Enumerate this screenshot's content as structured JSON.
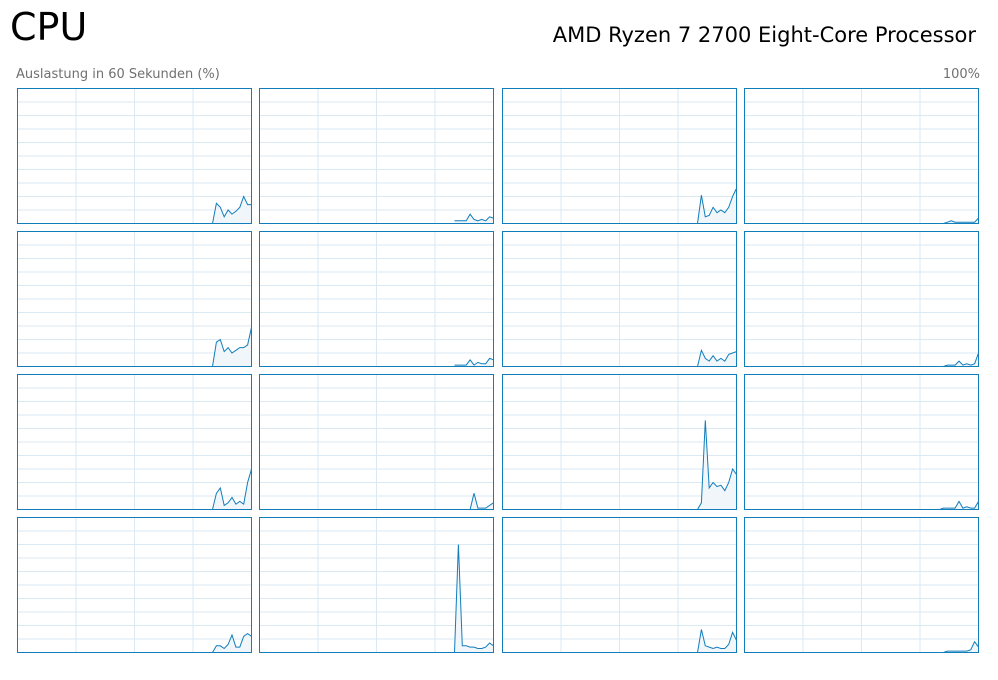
{
  "header": {
    "title": "CPU",
    "processor": "AMD Ryzen 7 2700 Eight-Core Processor"
  },
  "graph_label": "Auslastung in 60 Sekunden (%)",
  "graph_max_label": "100%",
  "chart_data": [
    {
      "type": "area",
      "color": "#117dbb",
      "grid": true,
      "xlim": [
        0,
        60
      ],
      "ylim": [
        0,
        100
      ],
      "xticks": [
        0,
        15,
        30,
        45,
        60
      ],
      "yticks": [
        0,
        10,
        20,
        30,
        40,
        50,
        60,
        70,
        80,
        90,
        100
      ],
      "x": [
        50,
        51,
        52,
        53,
        54,
        55,
        56,
        57,
        58,
        59,
        60
      ],
      "values": [
        0,
        15,
        12,
        5,
        10,
        7,
        9,
        12,
        20,
        14,
        14
      ]
    },
    {
      "type": "area",
      "color": "#117dbb",
      "grid": true,
      "xlim": [
        0,
        60
      ],
      "ylim": [
        0,
        100
      ],
      "xticks": [
        0,
        15,
        30,
        45,
        60
      ],
      "yticks": [
        0,
        10,
        20,
        30,
        40,
        50,
        60,
        70,
        80,
        90,
        100
      ],
      "x": [
        50,
        51,
        52,
        53,
        54,
        55,
        56,
        57,
        58,
        59,
        60
      ],
      "values": [
        2,
        2,
        2,
        2,
        7,
        3,
        2,
        3,
        2,
        5,
        4
      ]
    },
    {
      "type": "area",
      "color": "#117dbb",
      "grid": true,
      "xlim": [
        0,
        60
      ],
      "ylim": [
        0,
        100
      ],
      "xticks": [
        0,
        15,
        30,
        45,
        60
      ],
      "yticks": [
        0,
        10,
        20,
        30,
        40,
        50,
        60,
        70,
        80,
        90,
        100
      ],
      "x": [
        50,
        51,
        52,
        53,
        54,
        55,
        56,
        57,
        58,
        59,
        60
      ],
      "values": [
        0,
        21,
        5,
        6,
        12,
        8,
        10,
        8,
        12,
        20,
        26
      ]
    },
    {
      "type": "area",
      "color": "#117dbb",
      "grid": true,
      "xlim": [
        0,
        60
      ],
      "ylim": [
        0,
        100
      ],
      "xticks": [
        0,
        15,
        30,
        45,
        60
      ],
      "yticks": [
        0,
        10,
        20,
        30,
        40,
        50,
        60,
        70,
        80,
        90,
        100
      ],
      "x": [
        50,
        51,
        52,
        53,
        54,
        55,
        56,
        57,
        58,
        59,
        60
      ],
      "values": [
        0,
        0,
        1,
        2,
        1,
        1,
        1,
        1,
        1,
        1,
        4
      ]
    },
    {
      "type": "area",
      "color": "#117dbb",
      "grid": true,
      "xlim": [
        0,
        60
      ],
      "ylim": [
        0,
        100
      ],
      "xticks": [
        0,
        15,
        30,
        45,
        60
      ],
      "yticks": [
        0,
        10,
        20,
        30,
        40,
        50,
        60,
        70,
        80,
        90,
        100
      ],
      "x": [
        50,
        51,
        52,
        53,
        54,
        55,
        56,
        57,
        58,
        59,
        60
      ],
      "values": [
        0,
        18,
        20,
        11,
        14,
        10,
        12,
        14,
        14,
        16,
        29
      ]
    },
    {
      "type": "area",
      "color": "#117dbb",
      "grid": true,
      "xlim": [
        0,
        60
      ],
      "ylim": [
        0,
        100
      ],
      "xticks": [
        0,
        15,
        30,
        45,
        60
      ],
      "yticks": [
        0,
        10,
        20,
        30,
        40,
        50,
        60,
        70,
        80,
        90,
        100
      ],
      "x": [
        50,
        51,
        52,
        53,
        54,
        55,
        56,
        57,
        58,
        59,
        60
      ],
      "values": [
        1,
        1,
        1,
        1,
        5,
        1,
        3,
        2,
        2,
        6,
        5
      ]
    },
    {
      "type": "area",
      "color": "#117dbb",
      "grid": true,
      "xlim": [
        0,
        60
      ],
      "ylim": [
        0,
        100
      ],
      "xticks": [
        0,
        15,
        30,
        45,
        60
      ],
      "yticks": [
        0,
        10,
        20,
        30,
        40,
        50,
        60,
        70,
        80,
        90,
        100
      ],
      "x": [
        50,
        51,
        52,
        53,
        54,
        55,
        56,
        57,
        58,
        59,
        60
      ],
      "values": [
        0,
        12,
        6,
        4,
        8,
        4,
        6,
        4,
        9,
        10,
        11
      ]
    },
    {
      "type": "area",
      "color": "#117dbb",
      "grid": true,
      "xlim": [
        0,
        60
      ],
      "ylim": [
        0,
        100
      ],
      "xticks": [
        0,
        15,
        30,
        45,
        60
      ],
      "yticks": [
        0,
        10,
        20,
        30,
        40,
        50,
        60,
        70,
        80,
        90,
        100
      ],
      "x": [
        50,
        51,
        52,
        53,
        54,
        55,
        56,
        57,
        58,
        59,
        60
      ],
      "values": [
        0,
        0,
        1,
        1,
        1,
        4,
        1,
        2,
        1,
        2,
        10
      ]
    },
    {
      "type": "area",
      "color": "#117dbb",
      "grid": true,
      "xlim": [
        0,
        60
      ],
      "ylim": [
        0,
        100
      ],
      "xticks": [
        0,
        15,
        30,
        45,
        60
      ],
      "yticks": [
        0,
        10,
        20,
        30,
        40,
        50,
        60,
        70,
        80,
        90,
        100
      ],
      "x": [
        50,
        51,
        52,
        53,
        54,
        55,
        56,
        57,
        58,
        59,
        60
      ],
      "values": [
        0,
        12,
        16,
        3,
        5,
        9,
        4,
        6,
        4,
        20,
        30
      ]
    },
    {
      "type": "area",
      "color": "#117dbb",
      "grid": true,
      "xlim": [
        0,
        60
      ],
      "ylim": [
        0,
        100
      ],
      "xticks": [
        0,
        15,
        30,
        45,
        60
      ],
      "yticks": [
        0,
        10,
        20,
        30,
        40,
        50,
        60,
        70,
        80,
        90,
        100
      ],
      "x": [
        50,
        51,
        52,
        53,
        54,
        55,
        56,
        57,
        58,
        59,
        60
      ],
      "values": [
        0,
        0,
        0,
        0,
        0,
        12,
        1,
        1,
        1,
        3,
        5
      ]
    },
    {
      "type": "area",
      "color": "#117dbb",
      "grid": true,
      "xlim": [
        0,
        60
      ],
      "ylim": [
        0,
        100
      ],
      "xticks": [
        0,
        15,
        30,
        45,
        60
      ],
      "yticks": [
        0,
        10,
        20,
        30,
        40,
        50,
        60,
        70,
        80,
        90,
        100
      ],
      "x": [
        50,
        51,
        52,
        53,
        54,
        55,
        56,
        57,
        58,
        59,
        60
      ],
      "values": [
        0,
        5,
        66,
        16,
        20,
        17,
        18,
        14,
        20,
        30,
        26
      ]
    },
    {
      "type": "area",
      "color": "#117dbb",
      "grid": true,
      "xlim": [
        0,
        60
      ],
      "ylim": [
        0,
        100
      ],
      "xticks": [
        0,
        15,
        30,
        45,
        60
      ],
      "yticks": [
        0,
        10,
        20,
        30,
        40,
        50,
        60,
        70,
        80,
        90,
        100
      ],
      "x": [
        50,
        51,
        52,
        53,
        54,
        55,
        56,
        57,
        58,
        59,
        60
      ],
      "values": [
        0,
        1,
        1,
        1,
        1,
        6,
        1,
        2,
        1,
        1,
        6
      ]
    },
    {
      "type": "area",
      "color": "#117dbb",
      "grid": true,
      "xlim": [
        0,
        60
      ],
      "ylim": [
        0,
        100
      ],
      "xticks": [
        0,
        15,
        30,
        45,
        60
      ],
      "yticks": [
        0,
        10,
        20,
        30,
        40,
        50,
        60,
        70,
        80,
        90,
        100
      ],
      "x": [
        50,
        51,
        52,
        53,
        54,
        55,
        56,
        57,
        58,
        59,
        60
      ],
      "values": [
        0,
        5,
        5,
        3,
        6,
        13,
        4,
        4,
        12,
        14,
        12
      ]
    },
    {
      "type": "area",
      "color": "#117dbb",
      "grid": true,
      "xlim": [
        0,
        60
      ],
      "ylim": [
        0,
        100
      ],
      "xticks": [
        0,
        15,
        30,
        45,
        60
      ],
      "yticks": [
        0,
        10,
        20,
        30,
        40,
        50,
        60,
        70,
        80,
        90,
        100
      ],
      "x": [
        50,
        51,
        52,
        53,
        54,
        55,
        56,
        57,
        58,
        59,
        60
      ],
      "values": [
        0,
        80,
        5,
        5,
        4,
        4,
        3,
        3,
        4,
        7,
        5
      ]
    },
    {
      "type": "area",
      "color": "#117dbb",
      "grid": true,
      "xlim": [
        0,
        60
      ],
      "ylim": [
        0,
        100
      ],
      "xticks": [
        0,
        15,
        30,
        45,
        60
      ],
      "yticks": [
        0,
        10,
        20,
        30,
        40,
        50,
        60,
        70,
        80,
        90,
        100
      ],
      "x": [
        50,
        51,
        52,
        53,
        54,
        55,
        56,
        57,
        58,
        59,
        60
      ],
      "values": [
        0,
        17,
        5,
        4,
        3,
        4,
        3,
        3,
        6,
        15,
        9
      ]
    },
    {
      "type": "area",
      "color": "#117dbb",
      "grid": true,
      "xlim": [
        0,
        60
      ],
      "ylim": [
        0,
        100
      ],
      "xticks": [
        0,
        15,
        30,
        45,
        60
      ],
      "yticks": [
        0,
        10,
        20,
        30,
        40,
        50,
        60,
        70,
        80,
        90,
        100
      ],
      "x": [
        50,
        51,
        52,
        53,
        54,
        55,
        56,
        57,
        58,
        59,
        60
      ],
      "values": [
        0,
        0,
        1,
        1,
        1,
        1,
        1,
        1,
        2,
        8,
        4
      ]
    }
  ]
}
